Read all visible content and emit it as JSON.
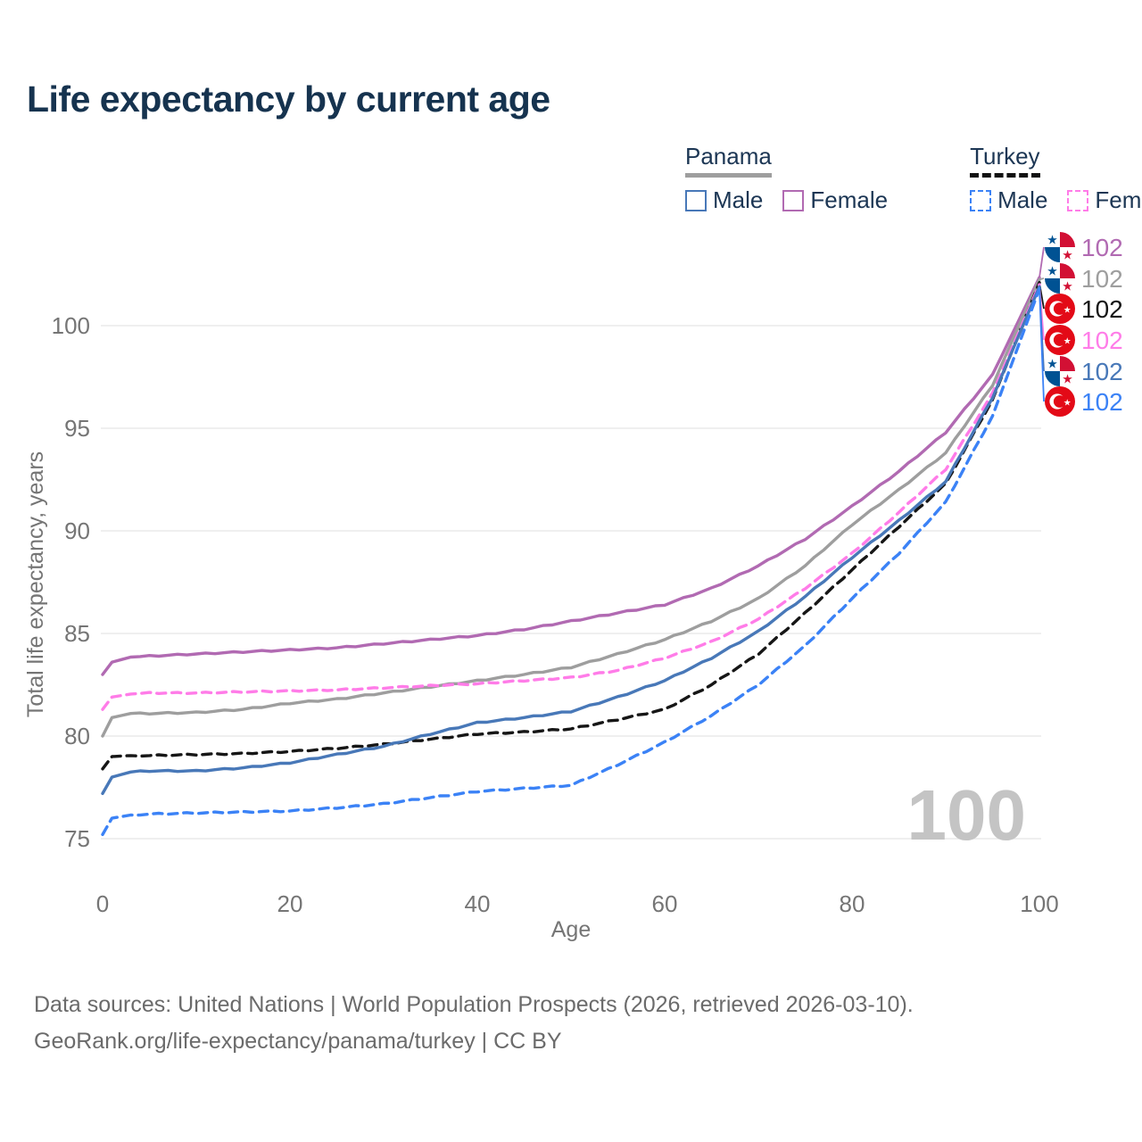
{
  "title": "Life expectancy by current age",
  "legend": {
    "groups": [
      {
        "label": "Panama",
        "line_style": "solid",
        "underline_color": "#9e9e9e",
        "items": [
          {
            "label": "Male",
            "color": "#4878b8",
            "dashed": false
          },
          {
            "label": "Female",
            "color": "#b16ab2",
            "dashed": false
          }
        ]
      },
      {
        "label": "Turkey",
        "line_style": "dashed",
        "underline_color": "#111111",
        "items": [
          {
            "label": "Male",
            "color": "#3b82f6",
            "dashed": true
          },
          {
            "label": "Female",
            "color": "#ff7ce8",
            "dashed": true
          }
        ]
      }
    ]
  },
  "chart_data": {
    "type": "line",
    "title": "Life expectancy by current age",
    "xlabel": "Age",
    "ylabel": "Total life expectancy, years",
    "x_ticks": [
      0,
      20,
      40,
      60,
      80,
      100
    ],
    "y_ticks": [
      75,
      80,
      85,
      90,
      95,
      100
    ],
    "xlim": [
      0,
      100
    ],
    "ylim": [
      75,
      102.5
    ],
    "grid": "horizontal",
    "legend_position": "top-right",
    "age_watermark": "100",
    "ages": [
      0,
      1,
      3,
      5,
      10,
      15,
      20,
      25,
      30,
      35,
      40,
      45,
      50,
      55,
      60,
      65,
      70,
      75,
      80,
      85,
      90,
      95,
      100
    ],
    "series": [
      {
        "country": "Panama",
        "sex": "Female",
        "flag": "panama",
        "color": "#b16ab2",
        "dashed": false,
        "end_label": "102",
        "label_slot": 0,
        "values": [
          83.0,
          83.6,
          83.85,
          83.9,
          84.0,
          84.1,
          84.2,
          84.3,
          84.5,
          84.7,
          84.9,
          85.2,
          85.6,
          86.0,
          86.4,
          87.2,
          88.3,
          89.6,
          91.2,
          92.9,
          94.8,
          97.6,
          102.35
        ]
      },
      {
        "country": "Panama",
        "sex": "Both sexes",
        "flag": "panama",
        "color": "#9e9e9e",
        "dashed": false,
        "end_label": "102",
        "label_slot": 1,
        "values": [
          80.0,
          80.9,
          81.1,
          81.1,
          81.15,
          81.3,
          81.6,
          81.8,
          82.1,
          82.4,
          82.7,
          83.0,
          83.35,
          84.0,
          84.7,
          85.6,
          86.7,
          88.3,
          90.3,
          92.0,
          93.8,
          97.1,
          102.25
        ]
      },
      {
        "country": "Turkey",
        "sex": "Both sexes",
        "flag": "turkey",
        "color": "#161616",
        "dashed": true,
        "end_label": "102",
        "label_slot": 2,
        "values": [
          78.4,
          79.0,
          79.05,
          79.05,
          79.1,
          79.15,
          79.25,
          79.4,
          79.6,
          79.85,
          80.1,
          80.2,
          80.35,
          80.8,
          81.3,
          82.5,
          84.0,
          86.0,
          88.1,
          90.2,
          92.3,
          96.4,
          102.1
        ]
      },
      {
        "country": "Turkey",
        "sex": "Female",
        "flag": "turkey",
        "color": "#ff7ce8",
        "dashed": true,
        "end_label": "102",
        "label_slot": 3,
        "values": [
          81.3,
          81.9,
          82.05,
          82.1,
          82.1,
          82.15,
          82.2,
          82.25,
          82.35,
          82.45,
          82.55,
          82.7,
          82.85,
          83.2,
          83.8,
          84.6,
          85.7,
          87.2,
          88.9,
          90.9,
          93.0,
          96.7,
          102.0
        ]
      },
      {
        "country": "Panama",
        "sex": "Male",
        "flag": "panama",
        "color": "#4878b8",
        "dashed": false,
        "end_label": "102",
        "label_slot": 4,
        "values": [
          77.2,
          78.0,
          78.25,
          78.3,
          78.3,
          78.45,
          78.7,
          79.1,
          79.5,
          80.1,
          80.65,
          80.9,
          81.2,
          81.9,
          82.7,
          83.8,
          85.1,
          86.8,
          88.7,
          90.5,
          92.4,
          96.5,
          101.9
        ]
      },
      {
        "country": "Turkey",
        "sex": "Male",
        "flag": "turkey",
        "color": "#3b82f6",
        "dashed": true,
        "end_label": "102",
        "label_slot": 5,
        "values": [
          75.2,
          76.0,
          76.15,
          76.2,
          76.25,
          76.3,
          76.35,
          76.5,
          76.7,
          77.0,
          77.3,
          77.45,
          77.6,
          78.6,
          79.7,
          81.0,
          82.5,
          84.4,
          86.7,
          88.9,
          91.4,
          95.6,
          101.8
        ]
      }
    ]
  },
  "flag_colors": {
    "panama_red": "#d21034",
    "panama_blue": "#005293",
    "turkey_red": "#e30a17"
  },
  "style_colors": {
    "title_navy": "#16334f",
    "tick_gray": "#757575",
    "grid_gray": "#eaeaea",
    "watermark_gray": "#c4c4c4",
    "footer_gray": "#6b6b6b"
  },
  "footer": {
    "line1": "Data sources: United Nations | World Population Prospects (2026, retrieved 2026-03-10).",
    "line2": "GeoRank.org/life-expectancy/panama/turkey | CC BY"
  }
}
